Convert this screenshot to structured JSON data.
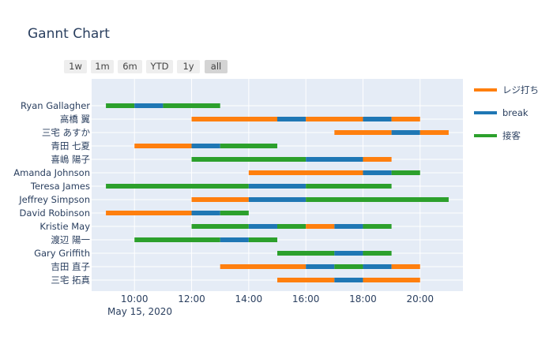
{
  "range_selector": {
    "buttons": [
      "1w",
      "1m",
      "6m",
      "YTD",
      "1y",
      "all"
    ],
    "active": "all"
  },
  "legend": {
    "items": [
      {
        "label": "レジ打ち",
        "color": "#ff7f0e"
      },
      {
        "label": "break",
        "color": "#1f77b4"
      },
      {
        "label": "接客",
        "color": "#2ca02c"
      }
    ]
  },
  "chart_data": {
    "type": "gantt",
    "title": "Gannt Chart",
    "x_date_label": "May 15, 2020",
    "x_ticks": [
      "10:00",
      "12:00",
      "14:00",
      "16:00",
      "18:00",
      "20:00"
    ],
    "x_range": [
      "08:30",
      "21:30"
    ],
    "series": [
      {
        "name": "レジ打ち",
        "color": "#ff7f0e"
      },
      {
        "name": "break",
        "color": "#1f77b4"
      },
      {
        "name": "接客",
        "color": "#2ca02c"
      }
    ],
    "rows": [
      {
        "name": "Ryan Gallagher",
        "tasks": [
          {
            "series": "接客",
            "start": "09:00",
            "end": "10:00"
          },
          {
            "series": "break",
            "start": "10:00",
            "end": "11:00"
          },
          {
            "series": "接客",
            "start": "11:00",
            "end": "13:00"
          }
        ]
      },
      {
        "name": "高橋 翼",
        "tasks": [
          {
            "series": "レジ打ち",
            "start": "12:00",
            "end": "15:00"
          },
          {
            "series": "break",
            "start": "15:00",
            "end": "16:00"
          },
          {
            "series": "レジ打ち",
            "start": "16:00",
            "end": "18:00"
          },
          {
            "series": "break",
            "start": "18:00",
            "end": "19:00"
          },
          {
            "series": "レジ打ち",
            "start": "19:00",
            "end": "20:00"
          }
        ]
      },
      {
        "name": "三宅 あすか",
        "tasks": [
          {
            "series": "レジ打ち",
            "start": "17:00",
            "end": "19:00"
          },
          {
            "series": "break",
            "start": "19:00",
            "end": "20:00"
          },
          {
            "series": "レジ打ち",
            "start": "20:00",
            "end": "21:00"
          }
        ]
      },
      {
        "name": "青田 七夏",
        "tasks": [
          {
            "series": "レジ打ち",
            "start": "10:00",
            "end": "12:00"
          },
          {
            "series": "break",
            "start": "12:00",
            "end": "13:00"
          },
          {
            "series": "接客",
            "start": "13:00",
            "end": "15:00"
          }
        ]
      },
      {
        "name": "喜嶋 陽子",
        "tasks": [
          {
            "series": "接客",
            "start": "12:00",
            "end": "16:00"
          },
          {
            "series": "break",
            "start": "16:00",
            "end": "18:00"
          },
          {
            "series": "レジ打ち",
            "start": "18:00",
            "end": "19:00"
          }
        ]
      },
      {
        "name": "Amanda Johnson",
        "tasks": [
          {
            "series": "レジ打ち",
            "start": "14:00",
            "end": "18:00"
          },
          {
            "series": "break",
            "start": "18:00",
            "end": "19:00"
          },
          {
            "series": "接客",
            "start": "19:00",
            "end": "20:00"
          }
        ]
      },
      {
        "name": "Teresa James",
        "tasks": [
          {
            "series": "接客",
            "start": "09:00",
            "end": "14:00"
          },
          {
            "series": "break",
            "start": "14:00",
            "end": "16:00"
          },
          {
            "series": "接客",
            "start": "16:00",
            "end": "19:00"
          }
        ]
      },
      {
        "name": "Jeffrey Simpson",
        "tasks": [
          {
            "series": "レジ打ち",
            "start": "12:00",
            "end": "14:00"
          },
          {
            "series": "break",
            "start": "14:00",
            "end": "16:00"
          },
          {
            "series": "接客",
            "start": "16:00",
            "end": "21:00"
          }
        ]
      },
      {
        "name": "David Robinson",
        "tasks": [
          {
            "series": "レジ打ち",
            "start": "09:00",
            "end": "12:00"
          },
          {
            "series": "break",
            "start": "12:00",
            "end": "13:00"
          },
          {
            "series": "接客",
            "start": "13:00",
            "end": "14:00"
          }
        ]
      },
      {
        "name": "Kristie May",
        "tasks": [
          {
            "series": "接客",
            "start": "12:00",
            "end": "14:00"
          },
          {
            "series": "break",
            "start": "14:00",
            "end": "15:00"
          },
          {
            "series": "接客",
            "start": "15:00",
            "end": "16:00"
          },
          {
            "series": "レジ打ち",
            "start": "16:00",
            "end": "17:00"
          },
          {
            "series": "break",
            "start": "17:00",
            "end": "18:00"
          },
          {
            "series": "接客",
            "start": "18:00",
            "end": "19:00"
          }
        ]
      },
      {
        "name": "渡辺 陽一",
        "tasks": [
          {
            "series": "接客",
            "start": "10:00",
            "end": "13:00"
          },
          {
            "series": "break",
            "start": "13:00",
            "end": "14:00"
          },
          {
            "series": "接客",
            "start": "14:00",
            "end": "15:00"
          }
        ]
      },
      {
        "name": "Gary Griffith",
        "tasks": [
          {
            "series": "接客",
            "start": "15:00",
            "end": "17:00"
          },
          {
            "series": "break",
            "start": "17:00",
            "end": "18:00"
          },
          {
            "series": "接客",
            "start": "18:00",
            "end": "19:00"
          }
        ]
      },
      {
        "name": "吉田 直子",
        "tasks": [
          {
            "series": "レジ打ち",
            "start": "13:00",
            "end": "16:00"
          },
          {
            "series": "break",
            "start": "16:00",
            "end": "17:00"
          },
          {
            "series": "接客",
            "start": "17:00",
            "end": "18:00"
          },
          {
            "series": "break",
            "start": "18:00",
            "end": "19:00"
          },
          {
            "series": "レジ打ち",
            "start": "19:00",
            "end": "20:00"
          }
        ]
      },
      {
        "name": "三宅 拓真",
        "tasks": [
          {
            "series": "レジ打ち",
            "start": "15:00",
            "end": "17:00"
          },
          {
            "series": "break",
            "start": "17:00",
            "end": "18:00"
          },
          {
            "series": "レジ打ち",
            "start": "18:00",
            "end": "20:00"
          }
        ]
      }
    ],
    "grid": true,
    "legend_position": "right"
  }
}
